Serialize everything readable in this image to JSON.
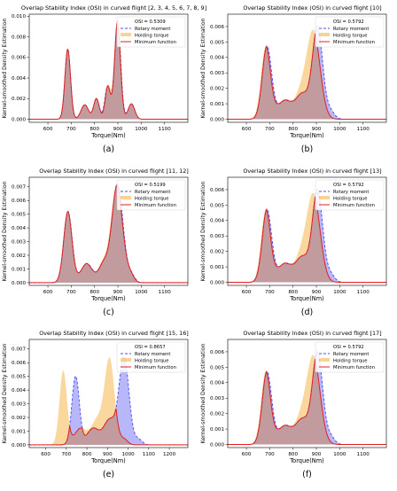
{
  "figure": {
    "osi_label": "OSI",
    "legend": {
      "rotary": "Rotary moment",
      "holding": "Holding torque",
      "minimum": "Minimum function"
    },
    "xlabel": "Torque(Nm)",
    "ylabel": "Kernel-smoothed Density Estimation",
    "colors": {
      "rotary": "#4a4af0",
      "holding": "#f5a623",
      "minimum": "#e02020",
      "fill_overlap": "#c49a9a"
    }
  },
  "chart_data": [
    {
      "type": "area",
      "panel": "(a)",
      "title": "Overlap Stability Index (OSI) in curved flight [2, 3, 4, 5, 6, 7, 8, 9]",
      "osi": "0.5309",
      "xlim": [
        520,
        1200
      ],
      "ylim": [
        -0.0003,
        0.0102
      ],
      "x_ticks": [
        600,
        700,
        800,
        900,
        1000,
        1100
      ],
      "y_ticks": [
        0.0,
        0.002,
        0.004,
        0.006,
        0.008,
        0.01
      ],
      "y_tick_labels": [
        "0.000",
        "0.002",
        "0.004",
        "0.006",
        "0.008",
        "0.010"
      ],
      "peaks": {
        "holding": [
          [
            685,
            0.0069,
            12
          ],
          [
            758,
            0.0014,
            16
          ],
          [
            808,
            0.0021,
            12
          ],
          [
            858,
            0.0033,
            12
          ],
          [
            898,
            0.0094,
            13
          ],
          [
            958,
            0.0015,
            14
          ]
        ],
        "rotary": [
          [
            685,
            0.0068,
            12
          ],
          [
            758,
            0.0014,
            16
          ],
          [
            808,
            0.002,
            12
          ],
          [
            856,
            0.0032,
            12
          ],
          [
            899,
            0.0096,
            13
          ],
          [
            958,
            0.0015,
            14
          ]
        ]
      }
    },
    {
      "type": "area",
      "panel": "(b)",
      "title": "Overlap Stability Index (OSI) in curved flight [10]",
      "osi": "0.5792",
      "xlim": [
        520,
        1200
      ],
      "ylim": [
        -0.0002,
        0.0068
      ],
      "x_ticks": [
        600,
        700,
        800,
        900,
        1000,
        1100
      ],
      "y_ticks": [
        0.0,
        0.001,
        0.002,
        0.003,
        0.004,
        0.005,
        0.006
      ],
      "y_tick_labels": [
        "0.000",
        "0.001",
        "0.002",
        "0.003",
        "0.004",
        "0.005",
        "0.006"
      ],
      "peaks": {
        "holding": [
          [
            683,
            0.0047,
            20
          ],
          [
            760,
            0.0012,
            30
          ],
          [
            835,
            0.0016,
            28
          ],
          [
            888,
            0.0055,
            28
          ]
        ],
        "rotary": [
          [
            688,
            0.0047,
            20
          ],
          [
            765,
            0.0012,
            30
          ],
          [
            840,
            0.0016,
            28
          ],
          [
            905,
            0.0059,
            22
          ],
          [
            960,
            0.0005,
            18
          ]
        ]
      }
    },
    {
      "type": "area",
      "panel": "(c)",
      "title": "Overlap Stability Index (OSI) in curved flight [11, 12]",
      "osi": "0.5199",
      "xlim": [
        520,
        1200
      ],
      "ylim": [
        -0.0002,
        0.0077
      ],
      "x_ticks": [
        600,
        700,
        800,
        900,
        1000,
        1100
      ],
      "y_ticks": [
        0.0,
        0.001,
        0.002,
        0.003,
        0.004,
        0.005,
        0.006,
        0.007
      ],
      "y_tick_labels": [
        "0.000",
        "0.001",
        "0.002",
        "0.003",
        "0.004",
        "0.005",
        "0.006",
        "0.007"
      ],
      "peaks": {
        "holding": [
          [
            685,
            0.0052,
            18
          ],
          [
            765,
            0.0014,
            25
          ],
          [
            835,
            0.0013,
            20
          ],
          [
            895,
            0.0071,
            25
          ],
          [
            955,
            0.0005,
            15
          ]
        ],
        "rotary": [
          [
            686,
            0.0052,
            18
          ],
          [
            767,
            0.0014,
            25
          ],
          [
            838,
            0.0013,
            20
          ],
          [
            898,
            0.0072,
            24
          ],
          [
            958,
            0.0005,
            15
          ]
        ]
      }
    },
    {
      "type": "area",
      "panel": "(d)",
      "title": "Overlap Stability Index (OSI) in curved flight [13]",
      "osi": "0.5792",
      "xlim": [
        520,
        1200
      ],
      "ylim": [
        -0.0002,
        0.0068
      ],
      "x_ticks": [
        600,
        700,
        800,
        900,
        1000,
        1100
      ],
      "y_ticks": [
        0.0,
        0.001,
        0.002,
        0.003,
        0.004,
        0.005,
        0.006
      ],
      "y_tick_labels": [
        "0.000",
        "0.001",
        "0.002",
        "0.003",
        "0.004",
        "0.005",
        "0.006"
      ],
      "peaks": {
        "holding": [
          [
            683,
            0.0047,
            20
          ],
          [
            760,
            0.0012,
            30
          ],
          [
            835,
            0.0016,
            28
          ],
          [
            888,
            0.0055,
            28
          ]
        ],
        "rotary": [
          [
            688,
            0.0047,
            20
          ],
          [
            765,
            0.0012,
            30
          ],
          [
            840,
            0.0016,
            28
          ],
          [
            905,
            0.0059,
            22
          ],
          [
            960,
            0.0005,
            18
          ]
        ]
      }
    },
    {
      "type": "area",
      "panel": "(e)",
      "title": "Overlap Stability Index (OSI) in curved flight [15, 16]",
      "osi": "0.8657",
      "xlim": [
        520,
        1290
      ],
      "ylim": [
        -0.0002,
        0.0077
      ],
      "x_ticks": [
        600,
        700,
        800,
        900,
        1000,
        1100,
        1200
      ],
      "y_ticks": [
        0.0,
        0.001,
        0.002,
        0.003,
        0.004,
        0.005,
        0.006,
        0.007
      ],
      "y_tick_labels": [
        "0.000",
        "0.001",
        "0.002",
        "0.003",
        "0.004",
        "0.005",
        "0.006",
        "0.007"
      ],
      "peaks": {
        "holding": [
          [
            685,
            0.0054,
            18
          ],
          [
            770,
            0.0012,
            30
          ],
          [
            850,
            0.0018,
            28
          ],
          [
            910,
            0.0062,
            24
          ],
          [
            980,
            0.0004,
            18
          ]
        ],
        "rotary": [
          [
            745,
            0.005,
            18
          ],
          [
            830,
            0.0012,
            30
          ],
          [
            910,
            0.0018,
            28
          ],
          [
            980,
            0.0064,
            24
          ],
          [
            1050,
            0.0004,
            18
          ]
        ]
      }
    },
    {
      "type": "area",
      "panel": "(f)",
      "title": "Overlap Stability Index (OSI) in curved flight [17]",
      "osi": "0.5792",
      "xlim": [
        520,
        1200
      ],
      "ylim": [
        -0.0002,
        0.0068
      ],
      "x_ticks": [
        600,
        700,
        800,
        900,
        1000,
        1100
      ],
      "y_ticks": [
        0.0,
        0.001,
        0.002,
        0.003,
        0.004,
        0.005,
        0.006
      ],
      "y_tick_labels": [
        "0.000",
        "0.001",
        "0.002",
        "0.003",
        "0.004",
        "0.005",
        "0.006"
      ],
      "peaks": {
        "holding": [
          [
            683,
            0.0047,
            20
          ],
          [
            760,
            0.0012,
            30
          ],
          [
            835,
            0.0016,
            28
          ],
          [
            888,
            0.0055,
            28
          ]
        ],
        "rotary": [
          [
            688,
            0.0047,
            20
          ],
          [
            765,
            0.0012,
            30
          ],
          [
            840,
            0.0016,
            28
          ],
          [
            905,
            0.0059,
            22
          ],
          [
            960,
            0.0005,
            18
          ]
        ]
      }
    }
  ]
}
